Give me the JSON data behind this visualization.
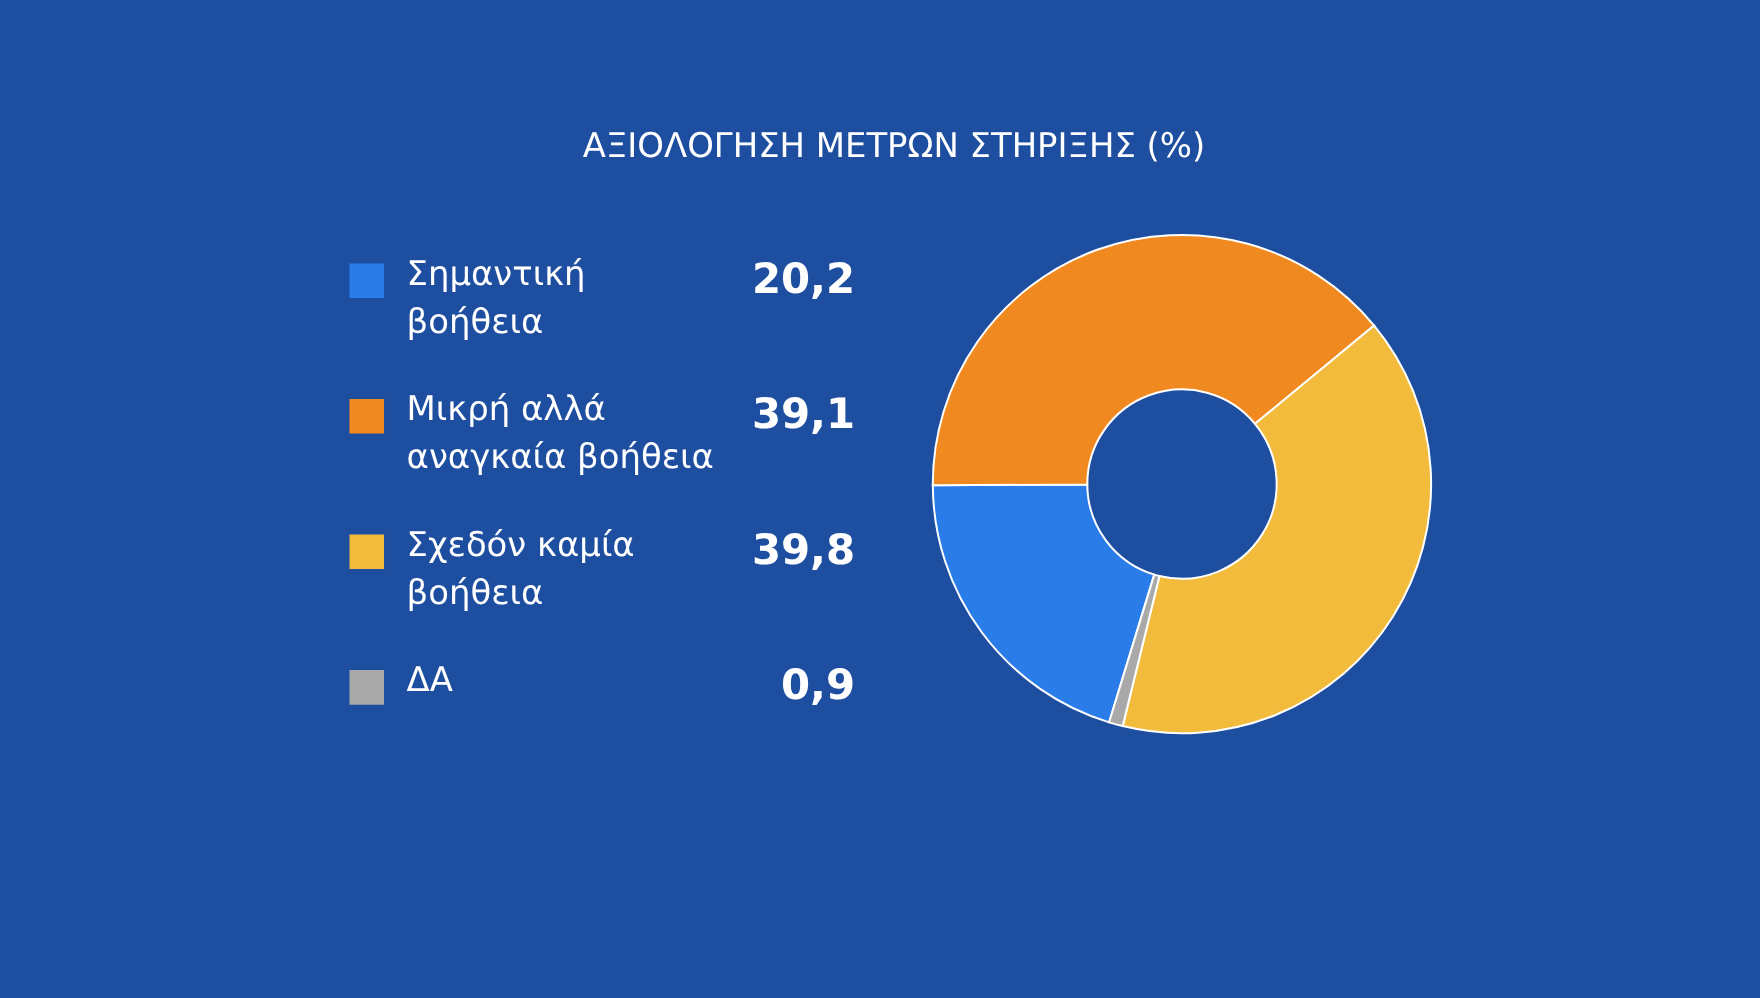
{
  "chart_data": {
    "type": "donut",
    "title": "ΑΞΙΟΛΟΓΗΣΗ ΜΕΤΡΩΝ ΣΤΗΡΙΞΗΣ (%)",
    "categories": [
      "Σημαντική βοήθεια",
      "Μικρή αλλά αναγκαία βοήθεια",
      "Σχεδόν καμία βοήθεια",
      "ΔΑ"
    ],
    "values": [
      20.2,
      39.1,
      39.8,
      0.9
    ],
    "colors": [
      "#2a7de8",
      "#f08a20",
      "#f2bb3c",
      "#a9a9a9"
    ],
    "value_labels": [
      "20,2",
      "39,1",
      "39,8",
      "0,9"
    ],
    "legend": "left"
  }
}
